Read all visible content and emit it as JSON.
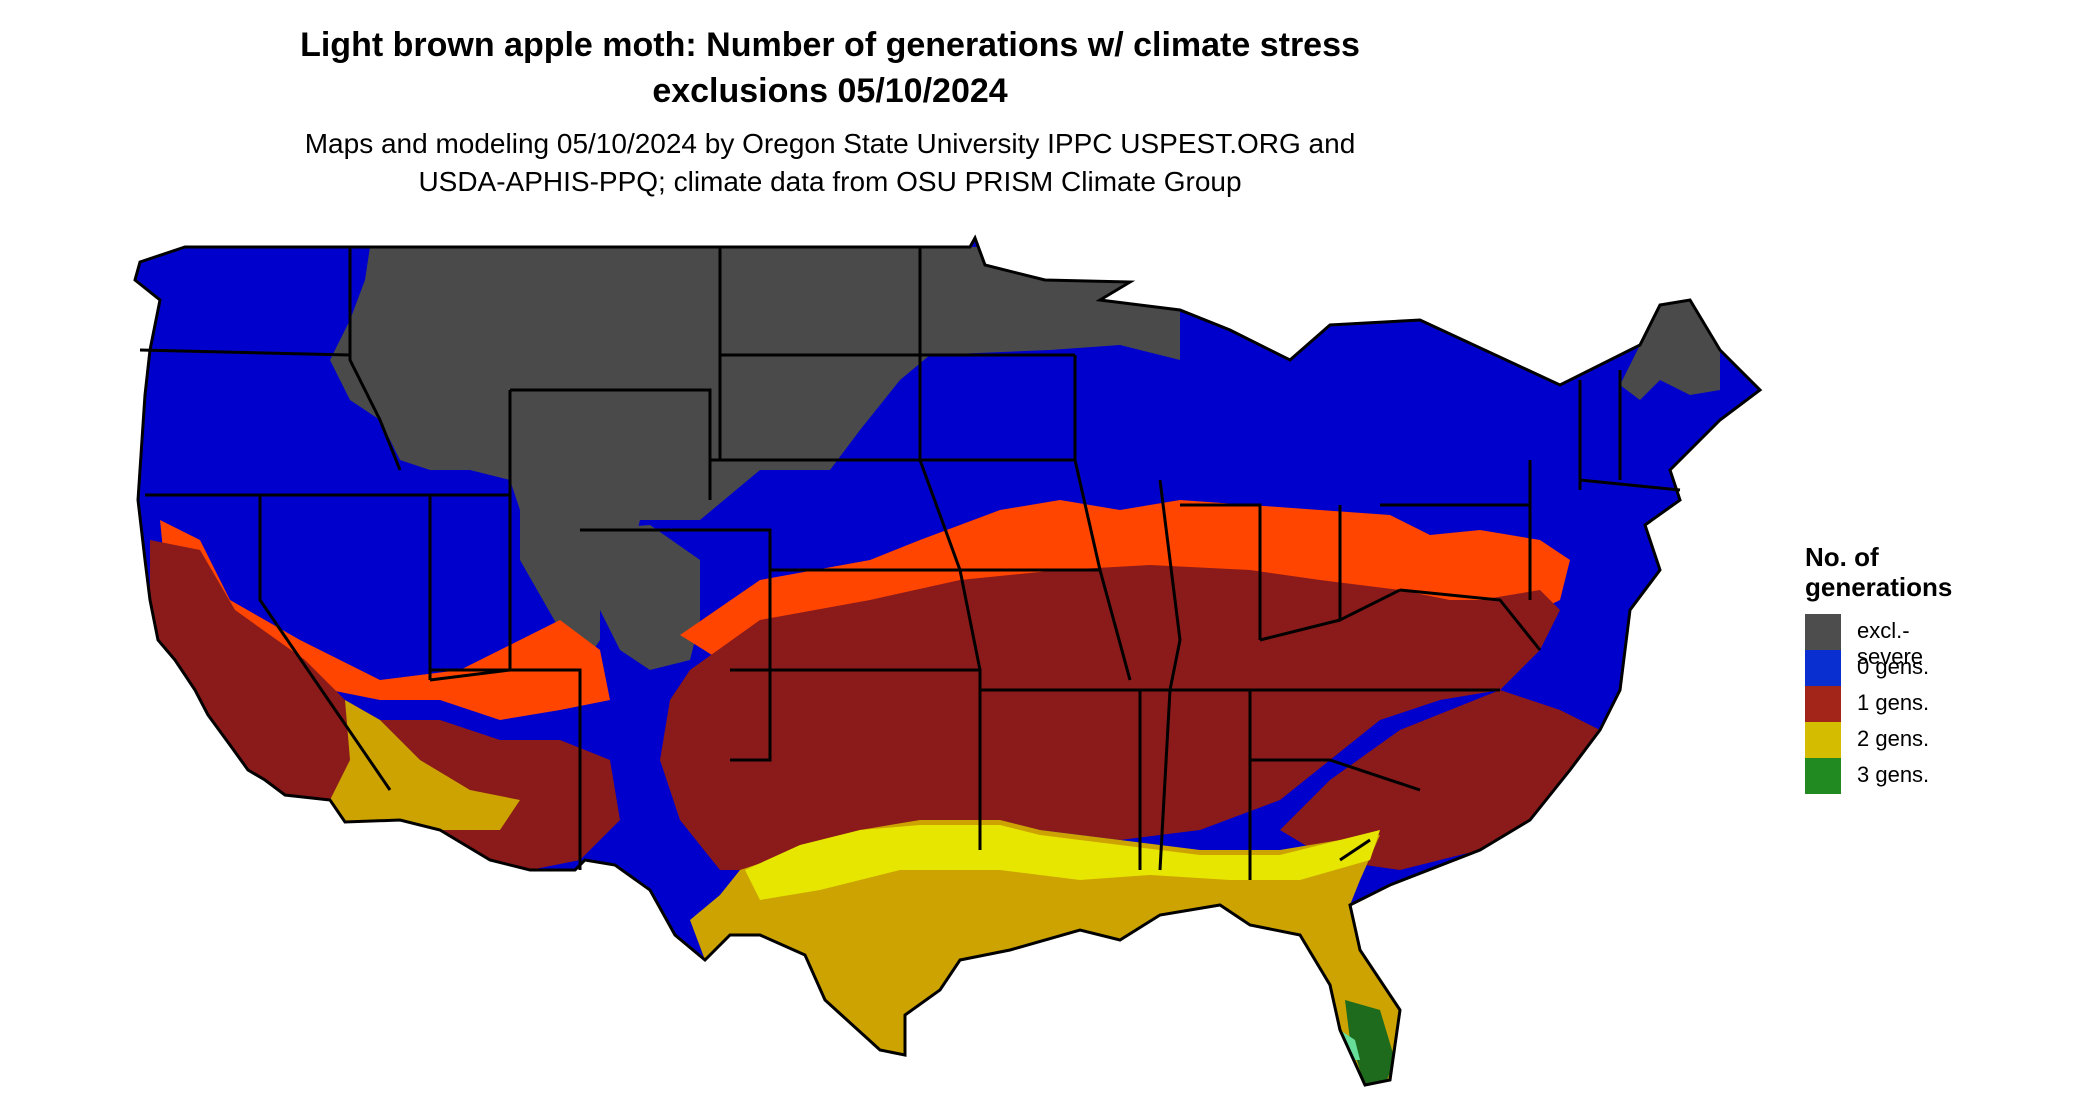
{
  "header": {
    "title_line1": "Light brown apple moth: Number of generations w/ climate stress",
    "title_line2": "exclusions 05/10/2024",
    "subtitle_line1": "Maps and modeling 05/10/2024 by Oregon State University IPPC USPEST.ORG and",
    "subtitle_line2": "USDA-APHIS-PPQ; climate data from OSU PRISM Climate Group"
  },
  "legend": {
    "title_line1": "No. of",
    "title_line2": "generations",
    "items": [
      {
        "label": "excl.-severe",
        "color": "#4d4d4d"
      },
      {
        "label": "0 gens.",
        "color": "#0a2fd1"
      },
      {
        "label": "1 gens.",
        "color": "#a32418"
      },
      {
        "label": "2 gens.",
        "color": "#d4bc00"
      },
      {
        "label": "3 gens.",
        "color": "#218a21"
      }
    ]
  },
  "map_colors": {
    "excluded": "#4a4a4a",
    "zero": "#0000cc",
    "one": "#8b1a1a",
    "transition": "#ff4500",
    "two": "#cca300",
    "two_bright": "#e6e600",
    "three": "#1e6b1e",
    "three_light": "#66dd99",
    "border": "#000000"
  }
}
